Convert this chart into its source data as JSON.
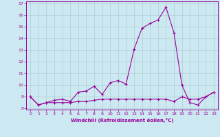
{
  "xlabel": "Windchill (Refroidissement éolien,°C)",
  "background_color": "#cce8f0",
  "line_color": "#990099",
  "grid_color": "#b0ccd4",
  "x_hours": [
    0,
    1,
    2,
    3,
    4,
    5,
    6,
    7,
    8,
    9,
    10,
    11,
    12,
    13,
    14,
    15,
    16,
    17,
    18,
    19,
    20,
    21,
    22,
    23
  ],
  "line1_y": [
    9.0,
    8.3,
    8.5,
    8.7,
    8.8,
    8.6,
    9.4,
    9.5,
    9.9,
    9.2,
    10.2,
    10.4,
    10.1,
    13.1,
    14.9,
    15.3,
    15.6,
    16.7,
    14.5,
    10.0,
    8.5,
    8.3,
    9.0,
    9.4
  ],
  "line2_y": [
    9.0,
    8.3,
    8.5,
    8.5,
    8.5,
    8.5,
    8.6,
    8.6,
    8.7,
    8.8,
    8.8,
    8.8,
    8.8,
    8.8,
    8.8,
    8.8,
    8.8,
    8.8,
    8.6,
    9.0,
    8.8,
    8.8,
    9.0,
    9.4
  ],
  "ylim": [
    7.9,
    17.2
  ],
  "xlim": [
    -0.5,
    23.5
  ],
  "yticks": [
    8,
    9,
    10,
    11,
    12,
    13,
    14,
    15,
    16,
    17
  ],
  "xticks": [
    0,
    1,
    2,
    3,
    4,
    5,
    6,
    7,
    8,
    9,
    10,
    11,
    12,
    13,
    14,
    15,
    16,
    17,
    18,
    19,
    20,
    21,
    22,
    23
  ]
}
